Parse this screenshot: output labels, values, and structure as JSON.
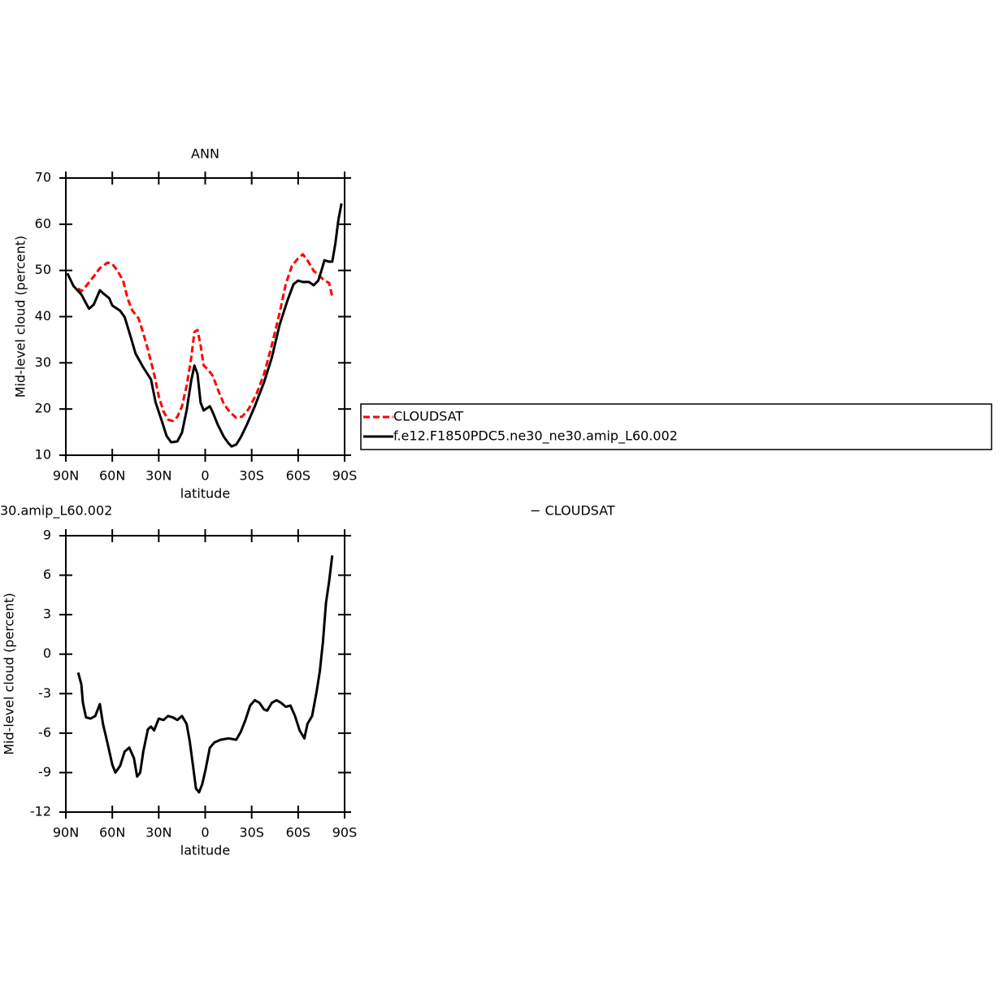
{
  "chart_data": [
    {
      "type": "line",
      "title": "ANN",
      "ylabel": "Mid-level cloud (percent)",
      "xlabel": "latitude",
      "xlim": [
        90,
        -90
      ],
      "xticks": [
        {
          "value": 90,
          "label": "90N"
        },
        {
          "value": 60,
          "label": "60N"
        },
        {
          "value": 30,
          "label": "30N"
        },
        0,
        {
          "value": -30,
          "label": "30S"
        },
        {
          "value": -60,
          "label": "60S"
        },
        {
          "value": -90,
          "label": "90S"
        }
      ],
      "ylim": [
        10,
        70
      ],
      "yticks": [
        10,
        20,
        30,
        40,
        50,
        60,
        70
      ],
      "legend": "right",
      "series": [
        {
          "name": "CLOUDSAT",
          "color": "#ff0000",
          "linestyle": "dashed",
          "x": [
            82,
            80,
            77,
            72,
            68,
            63,
            60,
            57,
            53,
            50,
            47,
            43,
            40,
            37,
            33,
            30,
            27,
            24,
            21,
            18,
            15,
            12,
            9,
            7,
            5,
            3,
            1,
            -2,
            -5,
            -8,
            -12,
            -16,
            -20,
            -24,
            -28,
            -33,
            -38,
            -43,
            -48,
            -52,
            -56,
            -60,
            -63,
            -66,
            -70,
            -73,
            -77,
            -80,
            -82
          ],
          "values": [
            46.1,
            45.5,
            46.6,
            48.7,
            50.5,
            51.7,
            51.4,
            50.1,
            47.8,
            43.8,
            41.3,
            39.6,
            36.4,
            32.9,
            27.6,
            22.8,
            19.5,
            17.7,
            17.4,
            18.3,
            20.6,
            25.0,
            31.1,
            36.7,
            37.1,
            33.8,
            29.4,
            28.5,
            27.1,
            24.4,
            21.1,
            19.3,
            18.1,
            18.4,
            20.0,
            23.2,
            27.6,
            33.8,
            40.8,
            47.0,
            51.0,
            52.6,
            53.5,
            52.2,
            49.9,
            49.1,
            47.8,
            47.3,
            44.3
          ]
        },
        {
          "name": "f.e12.F1850PDC5.ne30_ne30.amip_L60.002",
          "color": "#000000",
          "linestyle": "solid",
          "x": [
            89,
            85,
            80,
            77,
            75,
            72,
            68,
            65,
            62,
            60,
            55,
            52,
            48,
            45,
            40,
            35,
            32,
            28,
            25,
            22,
            18,
            15,
            12,
            9,
            7,
            5,
            3,
            1,
            -3,
            -5,
            -8,
            -12,
            -15,
            -17,
            -20,
            -23,
            -27,
            -32,
            -38,
            -43,
            -48,
            -53,
            -57,
            -60,
            -63,
            -67,
            -70,
            -73,
            -75,
            -77,
            -80,
            -82,
            -84,
            -86,
            -88
          ],
          "values": [
            49.4,
            46.6,
            44.8,
            42.9,
            41.7,
            42.6,
            45.7,
            44.8,
            44.0,
            42.4,
            41.3,
            39.9,
            35.5,
            32.0,
            29.0,
            26.4,
            21.4,
            17.4,
            14.2,
            12.8,
            13.0,
            14.9,
            19.7,
            26.2,
            29.4,
            27.6,
            21.4,
            19.7,
            20.6,
            19.2,
            16.7,
            14.0,
            12.6,
            11.9,
            12.3,
            13.9,
            16.7,
            20.6,
            25.8,
            31.1,
            38.2,
            43.4,
            47.0,
            47.8,
            47.5,
            47.5,
            46.8,
            47.8,
            49.9,
            52.2,
            51.9,
            51.9,
            55.8,
            61.0,
            64.5
          ]
        }
      ]
    },
    {
      "type": "line",
      "title_parts": [
        "30.amip_L60.002",
        "− CLOUDSAT"
      ],
      "ylabel": "Mid-level cloud (percent)",
      "xlabel": "latitude",
      "xlim": [
        90,
        -90
      ],
      "xticks": [
        {
          "value": 90,
          "label": "90N"
        },
        {
          "value": 60,
          "label": "60N"
        },
        {
          "value": 30,
          "label": "30N"
        },
        0,
        {
          "value": -30,
          "label": "30S"
        },
        {
          "value": -60,
          "label": "60S"
        },
        {
          "value": -90,
          "label": "90S"
        }
      ],
      "ylim": [
        -12,
        9
      ],
      "yticks": [
        -12,
        -9,
        -6,
        -3,
        0,
        3,
        6,
        9
      ],
      "series": [
        {
          "color": "#000000",
          "linestyle": "solid",
          "x": [
            82,
            80,
            79,
            77,
            74,
            71,
            68,
            66,
            63,
            60,
            58,
            55,
            52,
            49,
            46,
            44,
            42,
            40,
            37,
            35,
            33,
            30,
            27,
            24,
            21,
            18,
            15,
            12,
            10,
            8,
            6,
            4,
            2,
            0,
            -3,
            -6,
            -10,
            -15,
            -20,
            -23,
            -26,
            -29,
            -32,
            -35,
            -38,
            -40,
            -43,
            -46,
            -49,
            -52,
            -55,
            -58,
            -61,
            -64,
            -66,
            -69,
            -72,
            -74,
            -76,
            -78,
            -80,
            -82
          ],
          "values": [
            -1.4,
            -2.3,
            -3.7,
            -4.8,
            -4.9,
            -4.7,
            -3.8,
            -5.3,
            -6.8,
            -8.4,
            -9.0,
            -8.5,
            -7.4,
            -7.1,
            -7.9,
            -9.3,
            -9.0,
            -7.4,
            -5.7,
            -5.5,
            -5.8,
            -4.9,
            -5.0,
            -4.7,
            -4.8,
            -5.0,
            -4.7,
            -5.3,
            -6.6,
            -8.4,
            -10.2,
            -10.5,
            -9.9,
            -8.9,
            -7.1,
            -6.7,
            -6.5,
            -6.4,
            -6.5,
            -5.9,
            -5.0,
            -3.9,
            -3.5,
            -3.7,
            -4.2,
            -4.3,
            -3.7,
            -3.5,
            -3.7,
            -4.0,
            -3.9,
            -4.7,
            -5.8,
            -6.4,
            -5.3,
            -4.7,
            -2.8,
            -1.3,
            0.9,
            3.9,
            5.5,
            7.5
          ]
        }
      ]
    }
  ]
}
